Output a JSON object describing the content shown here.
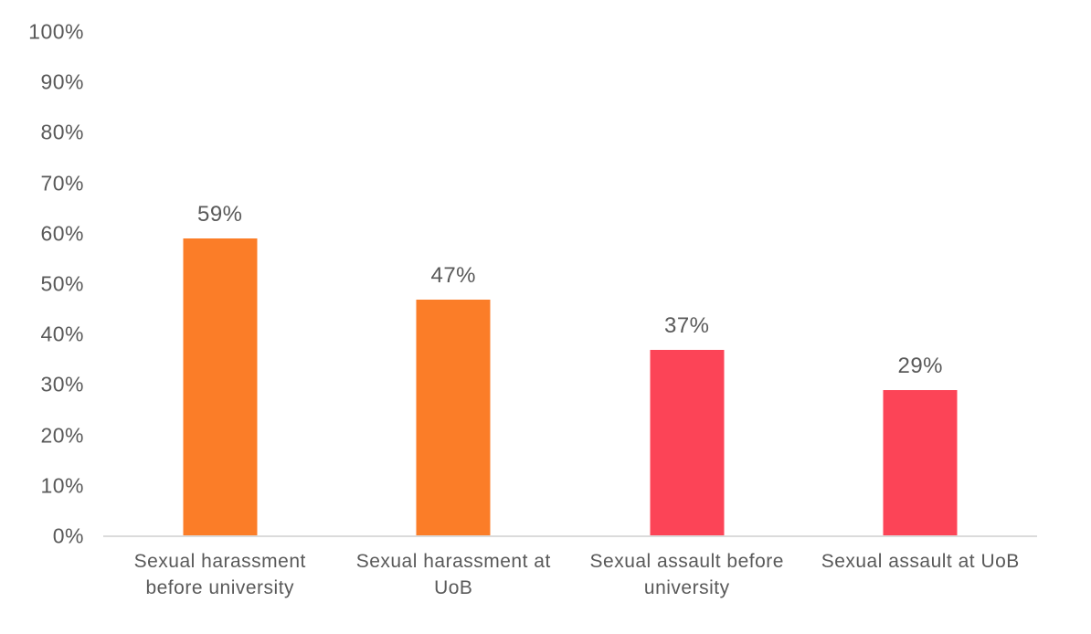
{
  "chart_data": {
    "type": "bar",
    "title": "",
    "xlabel": "",
    "ylabel": "",
    "categories": [
      "Sexual harassment before university",
      "Sexual harassment at UoB",
      "Sexual assault before university",
      "Sexual assault at UoB"
    ],
    "values": [
      59,
      47,
      37,
      29
    ],
    "data_labels": [
      "59%",
      "47%",
      "37%",
      "29%"
    ],
    "bar_colors": [
      "#FB7D28",
      "#FB7D28",
      "#FC4457",
      "#FC4457"
    ],
    "ylim": [
      0,
      100
    ],
    "ytick_values": [
      0,
      10,
      20,
      30,
      40,
      50,
      60,
      70,
      80,
      90,
      100
    ],
    "ytick_labels": [
      "0%",
      "10%",
      "20%",
      "30%",
      "40%",
      "50%",
      "60%",
      "70%",
      "80%",
      "90%",
      "100%"
    ],
    "grid": "off",
    "legend": "none",
    "text_color": "#595959",
    "axis_line_color": "#DBDBDB"
  }
}
